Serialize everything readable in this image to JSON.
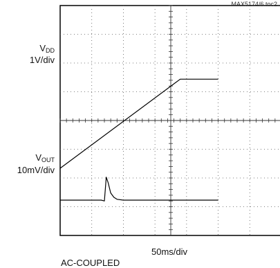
{
  "figure_id": "MAX5174/6 toc2",
  "chart_data": {
    "type": "line",
    "grid": true,
    "traces": [
      {
        "name_main": "V",
        "name_sub": "DD",
        "scale": "1V/div",
        "unit": "V",
        "coupling": "",
        "points": [
          [
            0,
            0.0
          ],
          [
            190,
            3.1
          ],
          [
            250,
            3.1
          ]
        ]
      },
      {
        "name_main": "V",
        "name_sub": "OUT",
        "scale": "10mV/div",
        "unit": "mV",
        "coupling": "AC-COUPLED",
        "points": [
          [
            0,
            0.0
          ],
          [
            65,
            0.0
          ],
          [
            70,
            -0.3
          ],
          [
            73,
            8.0
          ],
          [
            76,
            6.0
          ],
          [
            80,
            2.5
          ],
          [
            85,
            1.0
          ],
          [
            90,
            0.3
          ],
          [
            100,
            0.0
          ],
          [
            250,
            0.0
          ]
        ]
      }
    ],
    "xaxis": {
      "label": "50ms/div",
      "range_ms": [
        0,
        250
      ]
    },
    "annotations": [
      "AC-COUPLED"
    ]
  }
}
